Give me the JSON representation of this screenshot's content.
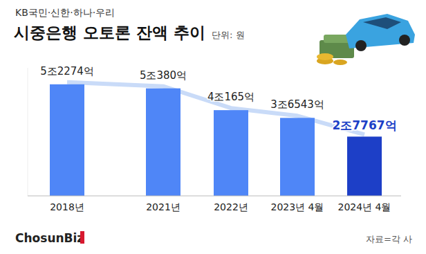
{
  "chart_data": {
    "type": "bar",
    "subtitle": "KB국민·신한·하나·우리",
    "title": "시중은행 오토론 잔액 추이",
    "unit": "단위: 원",
    "source": "자료=각 사",
    "logo": "ChosunBiz",
    "categories": [
      "2018년",
      "2021년",
      "2022년",
      "2023년 4월",
      "2024년 4월"
    ],
    "values": [
      52274,
      50380,
      40165,
      36543,
      27767
    ],
    "value_labels": [
      "5조2274억",
      "5조380억",
      "4조165억",
      "3조6543억",
      "2조7767억"
    ],
    "colors": [
      "#4f86f7",
      "#4f86f7",
      "#4f86f7",
      "#4f86f7",
      "#1d3fc7"
    ],
    "ylim": [
      0,
      60000
    ],
    "tick_labels": false,
    "grid": false,
    "data_labels": true
  }
}
